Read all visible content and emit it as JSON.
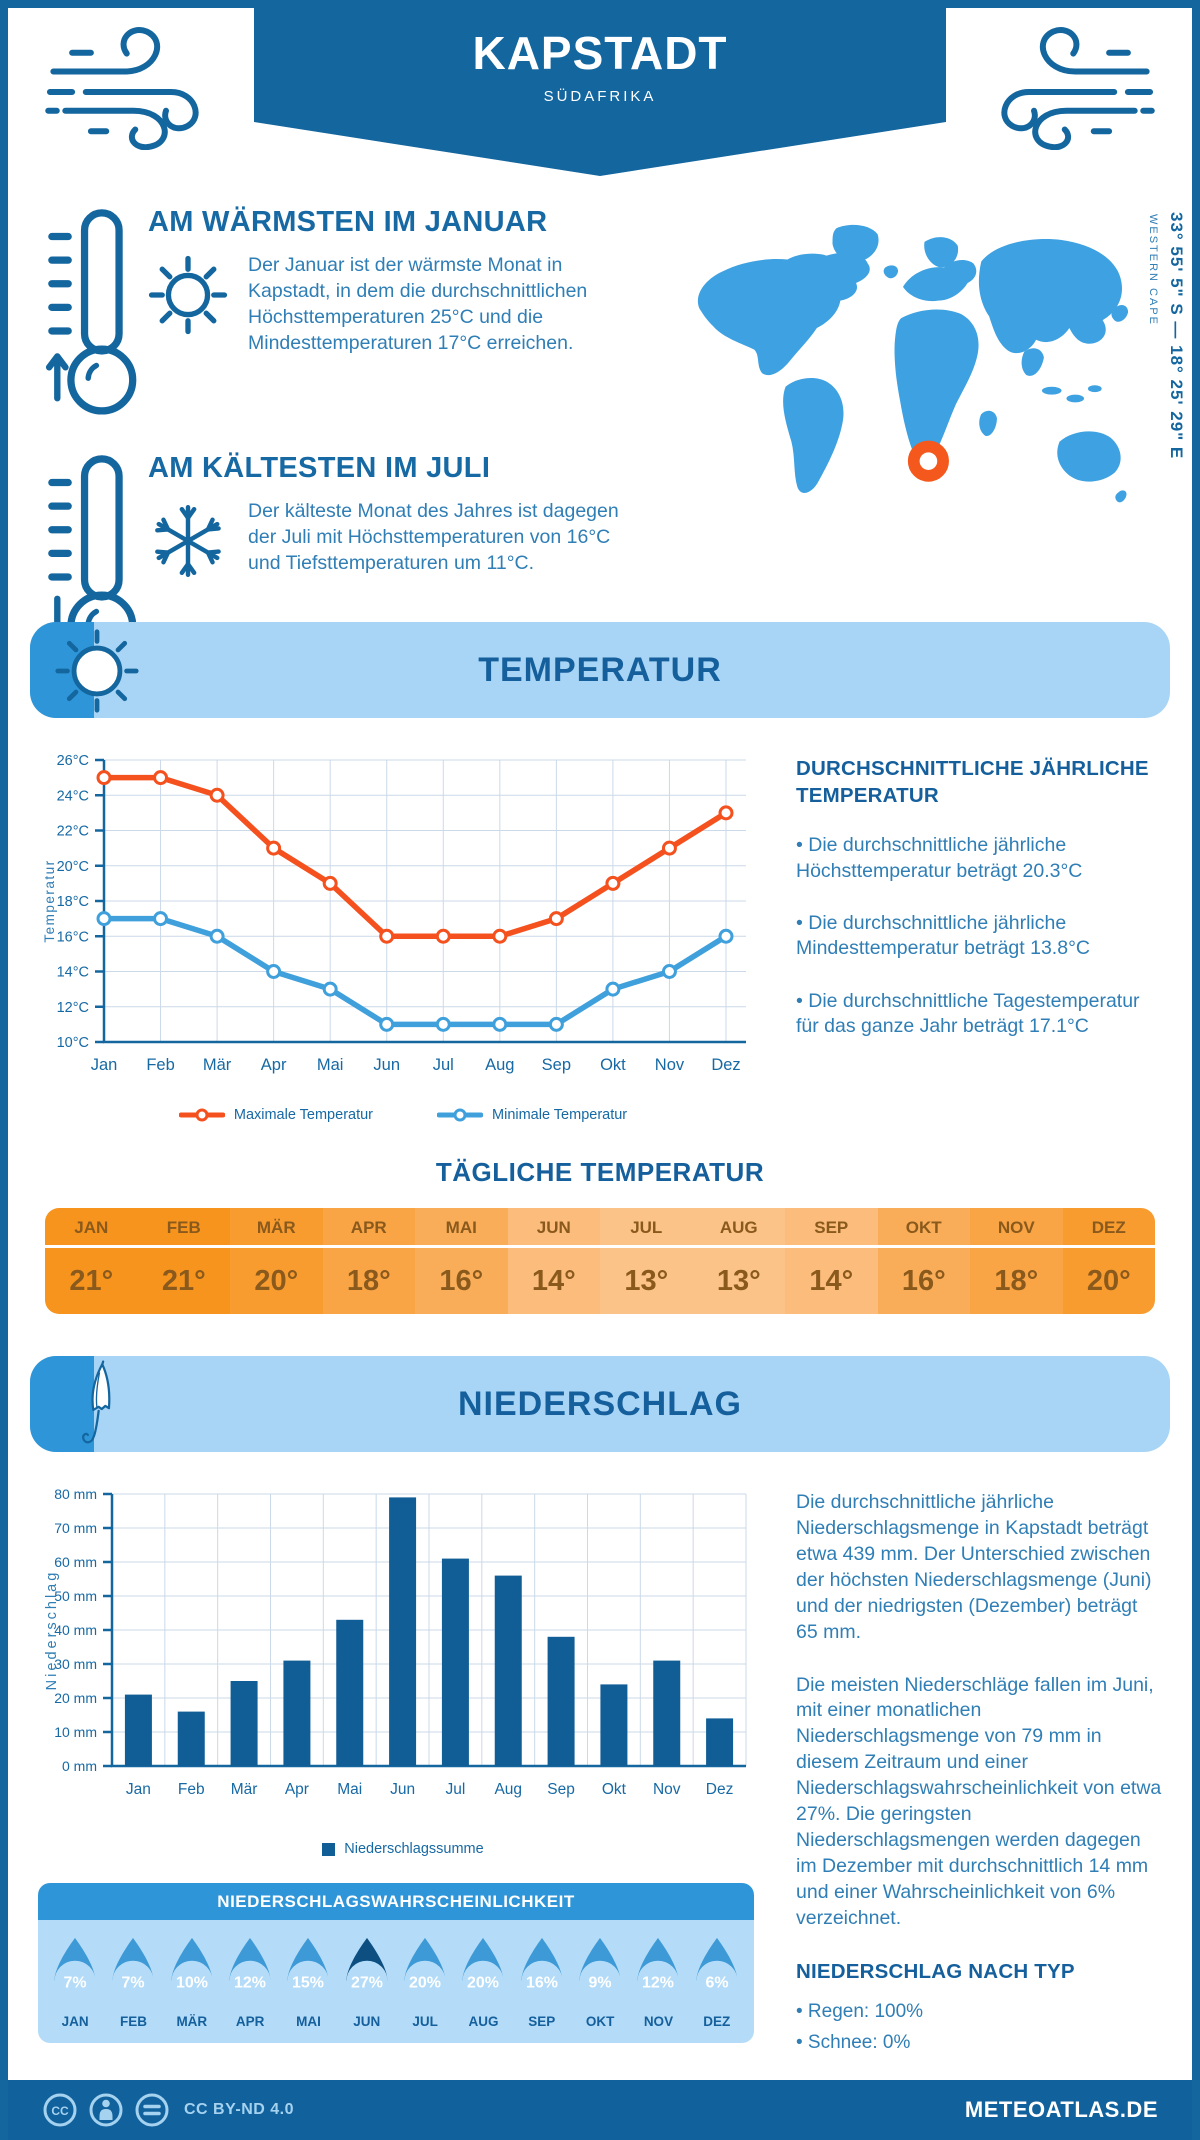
{
  "header": {
    "title": "KAPSTADT",
    "subtitle": "SÜDAFRIKA"
  },
  "warmest": {
    "title": "AM WÄRMSTEN IM JANUAR",
    "text": "Der Januar ist der wärmste Monat in Kapstadt, in dem die durchschnittlichen Höchsttemperaturen 25°C und die Mindesttemperaturen 17°C erreichen."
  },
  "coldest": {
    "title": "AM KÄLTESTEN IM JULI",
    "text": "Der kälteste Monat des Jahres ist dagegen der Juli mit Höchsttemperaturen von 16°C und Tiefsttemperaturen um 11°C."
  },
  "map": {
    "coordinates": "33° 55' 5\" S — 18° 25' 29\" E",
    "region": "WESTERN CAPE",
    "land_color": "#3EA1E1",
    "marker_color": "#F4581C"
  },
  "temperature_section": {
    "band_title": "TEMPERATUR",
    "avg_heading": "DURCHSCHNITTLICHE JÄHRLICHE TEMPERATUR",
    "bullets": [
      "Die durchschnittliche jährliche Höchsttemperatur beträgt 20.3°C",
      "Die durchschnittliche jährliche Mindesttemperatur beträgt 13.8°C",
      "Die durchschnittliche Tagestemperatur für das ganze Jahr beträgt 17.1°C"
    ]
  },
  "daily_temperature": {
    "title": "TÄGLICHE TEMPERATUR",
    "months": [
      "JAN",
      "FEB",
      "MÄR",
      "APR",
      "MAI",
      "JUN",
      "JUL",
      "AUG",
      "SEP",
      "OKT",
      "NOV",
      "DEZ"
    ],
    "values": [
      "21°",
      "21°",
      "20°",
      "18°",
      "16°",
      "14°",
      "13°",
      "13°",
      "14°",
      "16°",
      "18°",
      "20°"
    ],
    "cell_colors": [
      "#F7941E",
      "#F7941E",
      "#F89C30",
      "#F9A445",
      "#FAAD58",
      "#FBBC7C",
      "#FCC389",
      "#FCC389",
      "#FBBC7C",
      "#FAAD58",
      "#F9A445",
      "#F89C30"
    ]
  },
  "precipitation_section": {
    "band_title": "NIEDERSCHLAG",
    "paragraphs": [
      "Die durchschnittliche jährliche Niederschlagsmenge in Kapstadt beträgt etwa 439 mm. Der Unterschied zwischen der höchsten Niederschlagsmenge (Juni) und der niedrigsten (Dezember) beträgt 65 mm.",
      "Die meisten Niederschläge fallen im Juni, mit einer monatlichen Niederschlagsmenge von 79 mm in diesem Zeitraum und einer Niederschlagswahrscheinlichkeit von etwa 27%. Die geringsten Niederschlagsmengen werden dagegen im Dezember mit durchschnittlich 14 mm und einer Wahrscheinlichkeit von 6% verzeichnet."
    ],
    "type_heading": "NIEDERSCHLAG NACH TYP",
    "type_items": [
      {
        "label": "Regen",
        "value": "100%"
      },
      {
        "label": "Schnee",
        "value": "0%"
      }
    ]
  },
  "probability": {
    "title": "NIEDERSCHLAGSWAHRSCHEINLICHKEIT",
    "months": [
      "JAN",
      "FEB",
      "MÄR",
      "APR",
      "MAI",
      "JUN",
      "JUL",
      "AUG",
      "SEP",
      "OKT",
      "NOV",
      "DEZ"
    ],
    "values": [
      "7%",
      "7%",
      "10%",
      "12%",
      "15%",
      "27%",
      "20%",
      "20%",
      "16%",
      "9%",
      "12%",
      "6%"
    ],
    "highlight_index": 5,
    "drop_color": "#3D9AD6",
    "highlight_color": "#0D4F80"
  },
  "footer": {
    "license": "CC BY-ND 4.0",
    "site": "METEOATLAS.DE"
  },
  "chart_data": [
    {
      "type": "line",
      "categories": [
        "Jan",
        "Feb",
        "Mär",
        "Apr",
        "Mai",
        "Jun",
        "Jul",
        "Aug",
        "Sep",
        "Okt",
        "Nov",
        "Dez"
      ],
      "series": [
        {
          "name": "Maximale Temperatur",
          "color": "#F4511E",
          "values": [
            25,
            25,
            24,
            21,
            19,
            16,
            16,
            16,
            17,
            19,
            21,
            23
          ]
        },
        {
          "name": "Minimale Temperatur",
          "color": "#3FA0DC",
          "values": [
            17,
            17,
            16,
            14,
            13,
            11,
            11,
            11,
            11,
            13,
            14,
            16
          ]
        }
      ],
      "ylabel": "Temperatur",
      "ylim": [
        10,
        26
      ],
      "ytick_step": 2,
      "ytick_suffix": "°C",
      "grid": true,
      "legend_position": "bottom"
    },
    {
      "type": "bar",
      "categories": [
        "Jan",
        "Feb",
        "Mär",
        "Apr",
        "Mai",
        "Jun",
        "Jul",
        "Aug",
        "Sep",
        "Okt",
        "Nov",
        "Dez"
      ],
      "series": [
        {
          "name": "Niederschlagssumme",
          "color": "#115E96",
          "values": [
            21,
            16,
            25,
            31,
            43,
            79,
            61,
            56,
            38,
            24,
            31,
            14
          ]
        }
      ],
      "ylabel": "Niederschlag",
      "ylim": [
        0,
        80
      ],
      "ytick_step": 10,
      "ytick_suffix": " mm",
      "grid": true,
      "legend_position": "bottom"
    }
  ]
}
